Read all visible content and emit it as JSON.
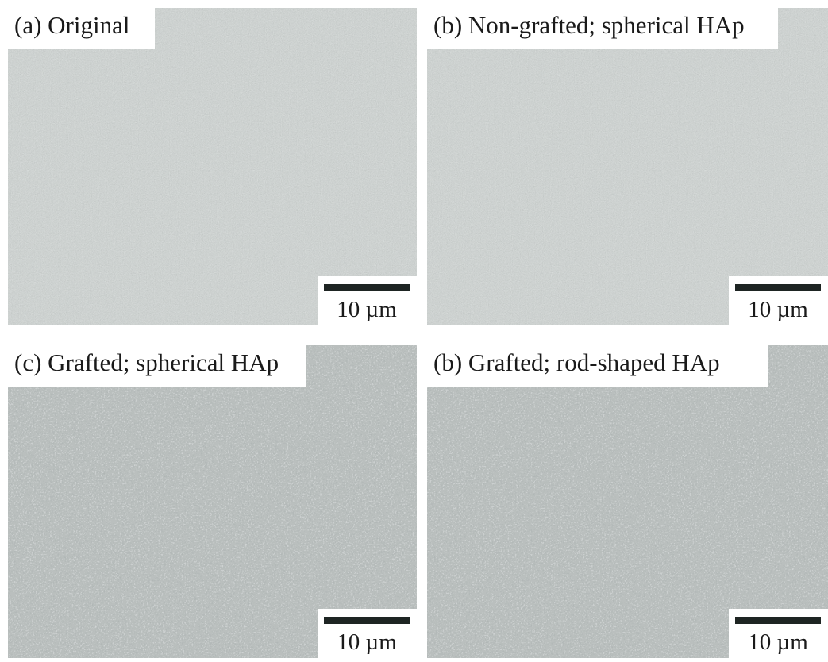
{
  "panels": [
    {
      "label": "(a) Original",
      "scale_bar": "10 µm"
    },
    {
      "label": "(b) Non-grafted; spherical HAp",
      "scale_bar": "10 µm"
    },
    {
      "label": "(c) Grafted; spherical HAp",
      "scale_bar": "10 µm"
    },
    {
      "label": "(b) Grafted; rod-shaped HAp",
      "scale_bar": "10 µm"
    }
  ]
}
